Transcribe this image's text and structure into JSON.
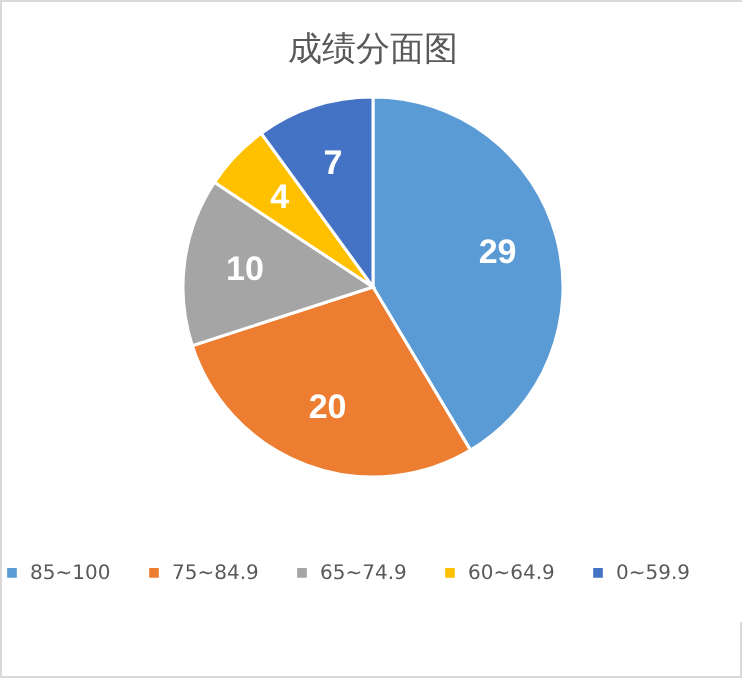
{
  "chart_data": {
    "type": "pie",
    "title": "成绩分面图",
    "categories": [
      "85~100",
      "75~84.9",
      "65~74.9",
      "60~64.9",
      "0~59.9"
    ],
    "values": [
      29,
      20,
      10,
      4,
      7
    ],
    "colors": [
      "#5b9bd5",
      "#ed7d31",
      "#a5a5a5",
      "#ffc000",
      "#4472c4"
    ],
    "data_labels": true,
    "legend": "bottom"
  }
}
